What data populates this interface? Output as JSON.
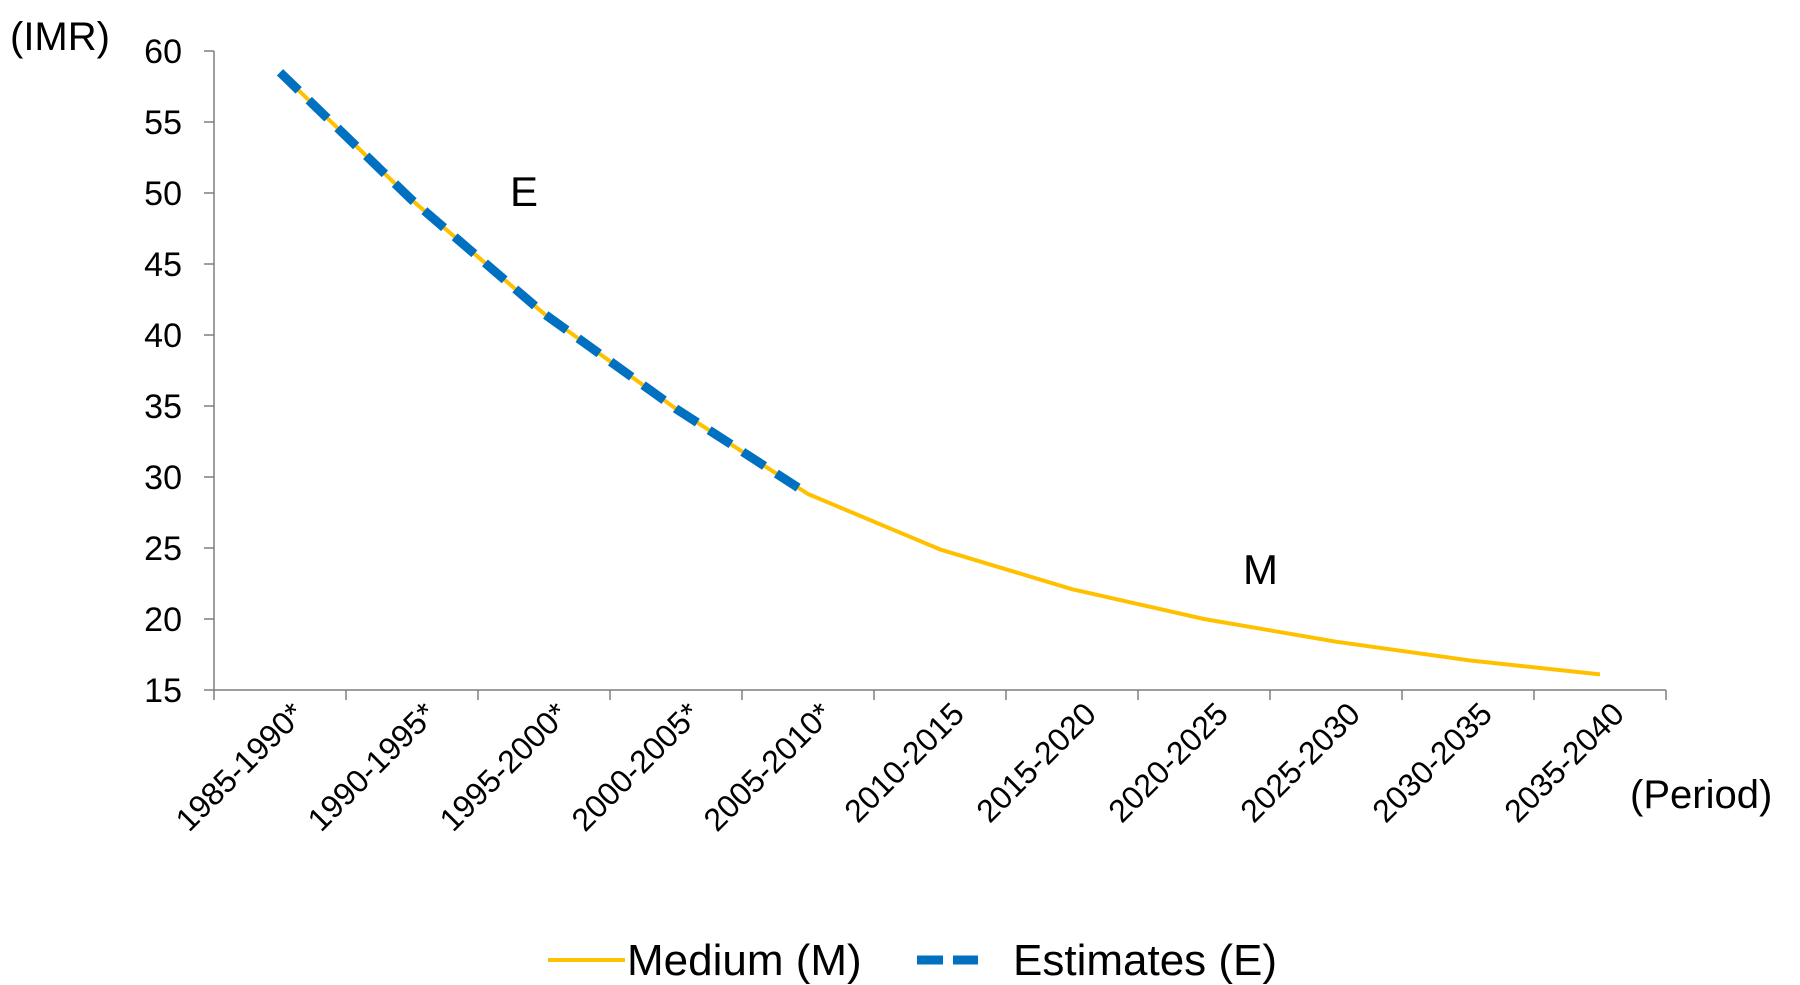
{
  "chart_data": {
    "type": "line",
    "ylabel": "(IMR)",
    "xlabel": "(Period)",
    "ylim": [
      15,
      60
    ],
    "yticks": [
      15,
      20,
      25,
      30,
      35,
      40,
      45,
      50,
      55,
      60
    ],
    "categories": [
      "1985-1990*",
      "1990-1995*",
      "1995-2000*",
      "2000-2005*",
      "2005-2010*",
      "2010-2015",
      "2015-2020",
      "2020-2025",
      "2025-2030",
      "2030-2035",
      "2035-2040"
    ],
    "grid": false,
    "legend_position": "bottom",
    "series": [
      {
        "name": "Medium (M)",
        "label": "M",
        "color": "#ffc000",
        "style": "solid",
        "values": [
          58.5,
          49.5,
          41.5,
          34.8,
          28.8,
          24.9,
          22.1,
          20.0,
          18.4,
          17.1,
          16.1
        ]
      },
      {
        "name": "Estimates (E)",
        "label": "E",
        "color": "#0070c0",
        "style": "dashed",
        "values": [
          58.5,
          49.5,
          41.5,
          34.8,
          28.8,
          null,
          null,
          null,
          null,
          null,
          null
        ]
      }
    ]
  }
}
